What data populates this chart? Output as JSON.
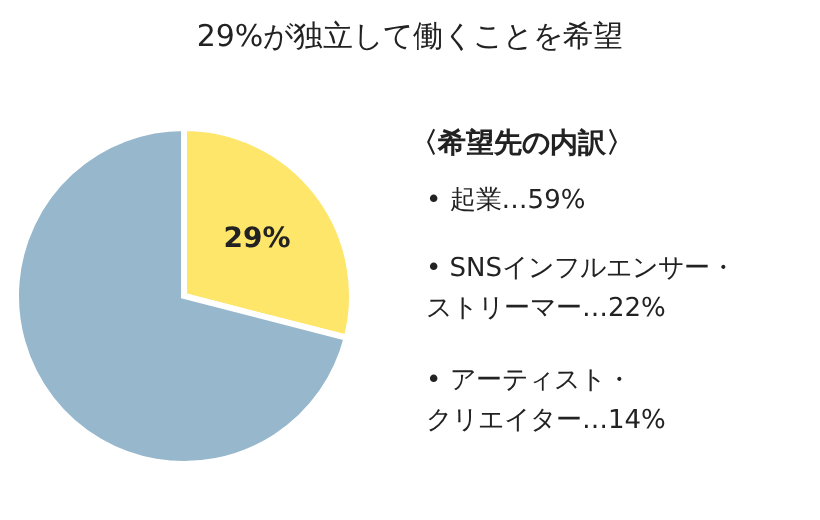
{
  "chart_data": {
    "type": "pie",
    "title": "29%が独立して働くことを希望",
    "categories": [
      null,
      null
    ],
    "values": [
      29,
      71
    ],
    "colors": [
      "#fde66a",
      "#96b7cc"
    ],
    "value_labels": [
      "29%",
      null
    ],
    "annotations": [
      "〈希望先の内訳〉",
      "• 起業…59%",
      "• SNSインフルエンサー・",
      "ストリーマー…22%",
      "• アーティスト・",
      "クリエイター…14%"
    ]
  }
}
